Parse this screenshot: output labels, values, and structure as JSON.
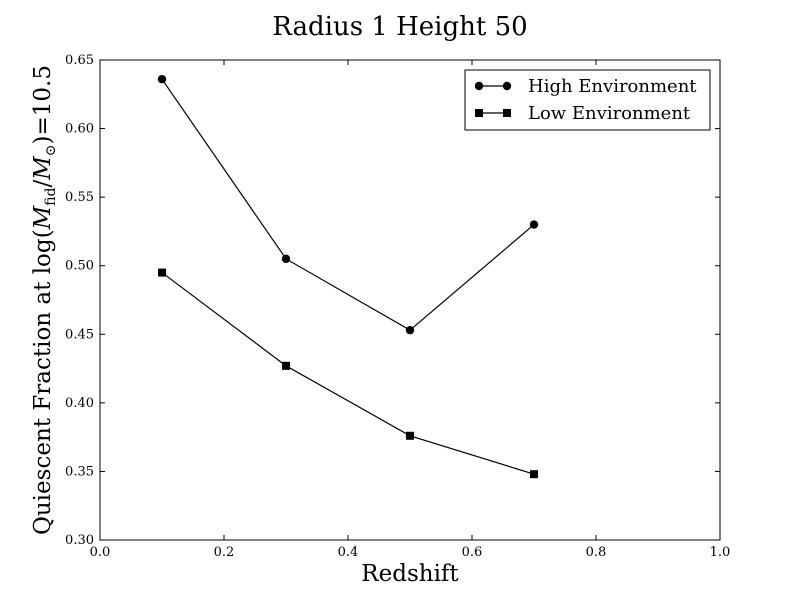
{
  "chart_data": {
    "type": "line",
    "title": "Radius 1 Height 50",
    "xlabel": "Redshift",
    "ylabel": {
      "prefix": "Quiescent Fraction at log(",
      "m1": "M",
      "sub1": "fid",
      "slash": "/",
      "m2": "M",
      "sub2": "⊙",
      "suffix": ")=10.5"
    },
    "xlim": [
      0.0,
      1.0
    ],
    "ylim": [
      0.3,
      0.65
    ],
    "xticks": [
      0.0,
      0.2,
      0.4,
      0.6,
      0.8,
      1.0
    ],
    "xtick_labels": [
      "0.0",
      "0.2",
      "0.4",
      "0.6",
      "0.8",
      "1.0"
    ],
    "yticks": [
      0.3,
      0.35,
      0.4,
      0.45,
      0.5,
      0.55,
      0.6,
      0.65
    ],
    "ytick_labels": [
      "0.30",
      "0.35",
      "0.40",
      "0.45",
      "0.50",
      "0.55",
      "0.60",
      "0.65"
    ],
    "grid": false,
    "legend_position": "top-right",
    "x": [
      0.1,
      0.3,
      0.5,
      0.7
    ],
    "series": [
      {
        "name": "High Environment",
        "marker": "circle",
        "color": "#000000",
        "values": [
          0.636,
          0.505,
          0.453,
          0.53
        ]
      },
      {
        "name": "Low Environment",
        "marker": "square",
        "color": "#000000",
        "values": [
          0.495,
          0.427,
          0.376,
          0.348
        ]
      }
    ]
  }
}
